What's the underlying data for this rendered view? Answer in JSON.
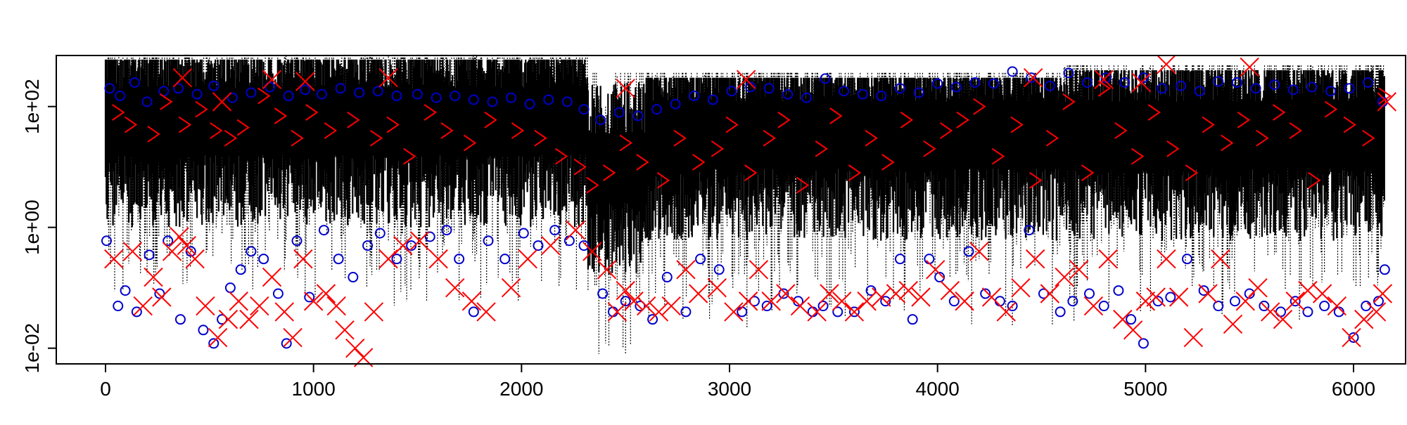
{
  "chart_data": {
    "type": "scatter",
    "title": "",
    "xlabel": "",
    "ylabel": "",
    "x_range": [
      0,
      6200
    ],
    "y_log_scale": true,
    "y_range": [
      0.01,
      1000
    ],
    "grid": false,
    "legend": "none",
    "x_ticks": [
      "0",
      "1000",
      "2000",
      "3000",
      "4000",
      "5000",
      "6000"
    ],
    "y_ticks": [
      "1e-02",
      "1e+00",
      "1e+02"
    ],
    "x_tick_values": [
      0,
      1000,
      2000,
      3000,
      4000,
      5000,
      6000
    ],
    "y_tick_values": [
      0.01,
      1,
      100
    ],
    "colors": {
      "band": "#000000",
      "circle": "#0000cc",
      "cross": "#ff0000",
      "chevron": "#ff0000"
    },
    "series": [
      {
        "marker": "circle",
        "x": [
          5,
          60,
          95,
          150,
          210,
          260,
          300,
          360,
          410,
          470,
          520,
          560,
          600,
          650,
          700,
          760,
          830,
          870,
          920,
          980,
          1050,
          1120,
          1190,
          1260,
          1320,
          1400,
          1470,
          1560,
          1640,
          1700,
          1770,
          1840,
          1920,
          2010,
          2080,
          2160,
          2230,
          2300,
          2390,
          2440,
          2500,
          2570,
          2630,
          2700,
          2790,
          2860,
          2950,
          3060,
          3120,
          3180,
          3260,
          3330,
          3400,
          3450,
          3520,
          3600,
          3680,
          3750,
          3820,
          3880,
          3960,
          4010,
          4080,
          4150,
          4230,
          4300,
          4360,
          4440,
          4510,
          4590,
          4650,
          4730,
          4800,
          4870,
          4930,
          4990,
          5060,
          5120,
          5200,
          5280,
          5350,
          5430,
          5500,
          5570,
          5650,
          5720,
          5780,
          5860,
          5930,
          6000,
          6060,
          6120,
          6150
        ],
        "y": [
          0.6,
          0.05,
          0.09,
          0.04,
          0.35,
          0.08,
          0.6,
          0.03,
          0.4,
          0.02,
          0.012,
          0.03,
          0.1,
          0.2,
          0.4,
          0.3,
          0.08,
          0.012,
          0.6,
          0.07,
          0.9,
          0.3,
          0.15,
          0.5,
          0.8,
          0.3,
          0.5,
          0.7,
          0.9,
          0.3,
          0.04,
          0.6,
          0.3,
          0.8,
          0.5,
          0.9,
          0.6,
          0.5,
          0.08,
          0.04,
          0.06,
          0.05,
          0.03,
          0.15,
          0.04,
          0.3,
          0.2,
          0.04,
          0.06,
          0.05,
          0.08,
          0.06,
          0.04,
          0.05,
          0.04,
          0.04,
          0.09,
          0.06,
          0.3,
          0.03,
          0.3,
          0.15,
          0.06,
          0.4,
          0.08,
          0.06,
          0.05,
          0.9,
          0.08,
          0.04,
          0.06,
          0.08,
          0.05,
          0.09,
          0.03,
          0.012,
          0.06,
          0.07,
          0.3,
          0.09,
          0.05,
          0.06,
          0.08,
          0.05,
          0.04,
          0.06,
          0.04,
          0.05,
          0.04,
          0.015,
          0.05,
          0.06,
          0.2
        ]
      },
      {
        "marker": "circle-upper",
        "x": [
          20,
          70,
          140,
          200,
          280,
          350,
          440,
          520,
          610,
          700,
          790,
          880,
          960,
          1040,
          1130,
          1220,
          1310,
          1400,
          1500,
          1590,
          1680,
          1770,
          1860,
          1950,
          2040,
          2130,
          2220,
          2300,
          2380,
          2470,
          2560,
          2650,
          2740,
          2830,
          2920,
          3010,
          3100,
          3190,
          3280,
          3370,
          3460,
          3550,
          3640,
          3730,
          3820,
          3910,
          4000,
          4090,
          4180,
          4270,
          4360,
          4450,
          4540,
          4630,
          4720,
          4810,
          4900,
          4990,
          5080,
          5170,
          5260,
          5350,
          5440,
          5530,
          5620,
          5710,
          5800,
          5890,
          5980,
          6070,
          6140
        ],
        "y": [
          200,
          150,
          250,
          120,
          180,
          200,
          160,
          220,
          140,
          170,
          210,
          150,
          190,
          160,
          200,
          170,
          180,
          150,
          160,
          140,
          150,
          130,
          120,
          140,
          110,
          130,
          120,
          90,
          60,
          80,
          70,
          90,
          110,
          150,
          130,
          180,
          210,
          200,
          160,
          140,
          290,
          180,
          160,
          150,
          200,
          170,
          240,
          210,
          250,
          240,
          380,
          300,
          220,
          360,
          250,
          300,
          250,
          300,
          200,
          220,
          180,
          260,
          250,
          200,
          230,
          190,
          210,
          180,
          200,
          250,
          120
        ]
      },
      {
        "marker": "cross",
        "x": [
          40,
          130,
          180,
          230,
          270,
          320,
          355,
          390,
          430,
          480,
          540,
          590,
          640,
          690,
          740,
          800,
          860,
          900,
          950,
          1000,
          1060,
          1110,
          1150,
          1200,
          1240,
          1290,
          1360,
          1430,
          1510,
          1600,
          1680,
          1760,
          1830,
          1950,
          2030,
          2140,
          2260,
          2340,
          2410,
          2460,
          2500,
          2540,
          2600,
          2660,
          2720,
          2790,
          2850,
          2940,
          3020,
          3090,
          3140,
          3200,
          3270,
          3340,
          3420,
          3480,
          3540,
          3600,
          3660,
          3730,
          3800,
          3860,
          3920,
          3990,
          4060,
          4130,
          4200,
          4260,
          4330,
          4400,
          4470,
          4540,
          4610,
          4680,
          4750,
          4820,
          4890,
          4940,
          5000,
          5050,
          5100,
          5160,
          5230,
          5300,
          5360,
          5420,
          5480,
          5540,
          5600,
          5660,
          5720,
          5780,
          5850,
          5920,
          5990,
          6050,
          6110,
          6140
        ],
        "y": [
          0.3,
          0.4,
          0.05,
          0.15,
          0.07,
          0.4,
          0.7,
          0.5,
          0.3,
          0.05,
          0.015,
          0.03,
          0.06,
          0.03,
          0.05,
          0.15,
          0.04,
          0.015,
          0.3,
          0.06,
          0.08,
          0.05,
          0.02,
          0.01,
          0.007,
          0.04,
          0.3,
          0.5,
          0.6,
          0.3,
          0.1,
          0.06,
          0.04,
          0.1,
          0.3,
          0.5,
          0.9,
          0.4,
          0.2,
          0.04,
          0.09,
          0.06,
          0.05,
          0.04,
          0.05,
          0.2,
          0.08,
          0.1,
          0.04,
          0.06,
          0.2,
          0.06,
          0.08,
          0.05,
          0.04,
          0.08,
          0.06,
          0.04,
          0.06,
          0.07,
          0.08,
          0.09,
          0.07,
          0.2,
          0.09,
          0.06,
          0.4,
          0.07,
          0.04,
          0.1,
          0.3,
          0.08,
          0.15,
          0.2,
          0.05,
          0.3,
          0.03,
          0.02,
          0.06,
          0.07,
          0.3,
          0.07,
          0.015,
          0.08,
          0.3,
          0.025,
          0.06,
          0.1,
          0.04,
          0.03,
          0.06,
          0.09,
          0.08,
          0.05,
          0.015,
          0.03,
          0.04,
          0.08
        ]
      },
      {
        "marker": "cross-upper",
        "x": [
          370,
          560,
          800,
          960,
          1360,
          2500,
          3080,
          4460,
          4800,
          4980,
          5100,
          5500,
          6160
        ],
        "y": [
          300,
          120,
          280,
          260,
          300,
          200,
          280,
          300,
          280,
          250,
          500,
          450,
          120
        ]
      },
      {
        "marker": "chevron",
        "x": [
          60,
          120,
          230,
          290,
          380,
          460,
          530,
          600,
          660,
          760,
          840,
          920,
          990,
          1080,
          1190,
          1300,
          1380,
          1460,
          1560,
          1640,
          1750,
          1850,
          1980,
          2090,
          2190,
          2280,
          2340,
          2420,
          2500,
          2580,
          2680,
          2760,
          2850,
          2940,
          3010,
          3100,
          3190,
          3260,
          3350,
          3440,
          3510,
          3600,
          3680,
          3760,
          3850,
          3960,
          4040,
          4120,
          4200,
          4290,
          4380,
          4470,
          4550,
          4630,
          4720,
          4800,
          4880,
          4960,
          5040,
          5130,
          5220,
          5300,
          5390,
          5470,
          5560,
          5640,
          5720,
          5810,
          5890,
          5980,
          6070,
          6150
        ],
        "y": [
          80,
          50,
          35,
          120,
          50,
          90,
          40,
          30,
          45,
          150,
          70,
          30,
          80,
          40,
          60,
          30,
          50,
          15,
          80,
          40,
          25,
          60,
          40,
          30,
          15,
          10,
          5,
          8,
          25,
          12,
          6,
          30,
          12,
          20,
          50,
          8,
          30,
          60,
          5,
          20,
          70,
          8,
          30,
          12,
          60,
          20,
          40,
          60,
          100,
          15,
          50,
          6,
          30,
          120,
          8,
          200,
          40,
          15,
          80,
          20,
          8,
          50,
          25,
          60,
          30,
          80,
          40,
          6,
          90,
          50,
          30,
          150
        ]
      }
    ]
  }
}
